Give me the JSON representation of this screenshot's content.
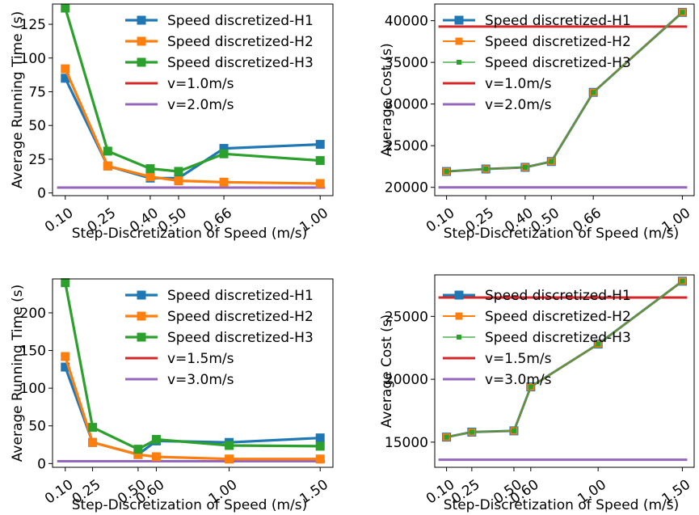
{
  "chart_data": [
    {
      "type": "line",
      "panel": "top-left",
      "xlabel": "Step-Discretization of Speed (m/s)",
      "ylabel": "Average Running Time (s)",
      "x": [
        0.1,
        0.25,
        0.4,
        0.5,
        0.66,
        1.0
      ],
      "x_tick_labels": [
        "0.10",
        "0.25",
        "0.40",
        "0.50",
        "0.66",
        "1.00"
      ],
      "xlim": [
        0.055,
        1.045
      ],
      "ylim": [
        -2,
        140
      ],
      "y_ticks": [
        0,
        25,
        50,
        75,
        100,
        125
      ],
      "legend_position": "top-right",
      "series": [
        {
          "name": "Speed discretized-H1",
          "color": "#1f77b4",
          "marker_size": "large",
          "values": [
            85,
            20,
            11,
            11,
            33,
            36
          ]
        },
        {
          "name": "Speed discretized-H2",
          "color": "#ff7f0e",
          "marker_size": "large",
          "values": [
            92,
            20,
            12,
            9,
            8,
            7
          ]
        },
        {
          "name": "Speed discretized-H3",
          "color": "#2ca02c",
          "marker_size": "large",
          "values": [
            137,
            31,
            18,
            16,
            29,
            24
          ]
        }
      ],
      "reference_lines": [
        {
          "name": "v=1.0m/s",
          "color": "#d62728",
          "value": 4,
          "visible": true
        },
        {
          "name": "v=2.0m/s",
          "color": "#9467bd",
          "value": 4,
          "visible": true
        }
      ]
    },
    {
      "type": "line",
      "panel": "top-right",
      "xlabel": "Step-Discretization of Speed (m/s)",
      "ylabel": "Average Cost (s)",
      "x": [
        0.1,
        0.25,
        0.4,
        0.5,
        0.66,
        1.0
      ],
      "x_tick_labels": [
        "0.10",
        "0.25",
        "0.40",
        "0.50",
        "0.66",
        "1.00"
      ],
      "xlim": [
        0.055,
        1.045
      ],
      "ylim": [
        19000,
        42000
      ],
      "y_ticks": [
        20000,
        25000,
        30000,
        35000,
        40000
      ],
      "legend_position": "top-left",
      "series": [
        {
          "name": "Speed discretized-H1",
          "color": "#1f77b4",
          "marker_size": "large",
          "values": [
            21900,
            22200,
            22400,
            23100,
            31400,
            41000
          ]
        },
        {
          "name": "Speed discretized-H2",
          "color": "#ff7f0e",
          "marker_size": "medium",
          "values": [
            21900,
            22200,
            22400,
            23100,
            31400,
            41000
          ]
        },
        {
          "name": "Speed discretized-H3",
          "color": "#2ca02c",
          "marker_size": "small",
          "values": [
            21900,
            22200,
            22400,
            23100,
            31400,
            41000
          ]
        }
      ],
      "reference_lines": [
        {
          "name": "v=1.0m/s",
          "color": "#d62728",
          "value": 39300,
          "visible": true
        },
        {
          "name": "v=2.0m/s",
          "color": "#9467bd",
          "value": 20000,
          "visible": true
        }
      ]
    },
    {
      "type": "line",
      "panel": "bottom-left",
      "xlabel": "Step-Discretization of Speed (m/s)",
      "ylabel": "Average Running Time (s)",
      "x": [
        0.1,
        0.25,
        0.5,
        0.6,
        1.0,
        1.5
      ],
      "x_tick_labels": [
        "0.10",
        "0.25",
        "0.50",
        "0.60",
        "1.00",
        "1.50"
      ],
      "xlim": [
        0.03,
        1.57
      ],
      "ylim": [
        -5,
        245
      ],
      "y_ticks": [
        0,
        50,
        100,
        150,
        200
      ],
      "legend_position": "top-right",
      "series": [
        {
          "name": "Speed discretized-H1",
          "color": "#1f77b4",
          "marker_size": "large",
          "values": [
            128,
            28,
            12,
            30,
            28,
            34
          ]
        },
        {
          "name": "Speed discretized-H2",
          "color": "#ff7f0e",
          "marker_size": "large",
          "values": [
            142,
            28,
            12,
            9,
            6,
            6
          ]
        },
        {
          "name": "Speed discretized-H3",
          "color": "#2ca02c",
          "marker_size": "large",
          "values": [
            240,
            48,
            19,
            32,
            24,
            23
          ]
        }
      ],
      "reference_lines": [
        {
          "name": "v=1.5m/s",
          "color": "#d62728",
          "value": 3,
          "visible": false
        },
        {
          "name": "v=3.0m/s",
          "color": "#9467bd",
          "value": 3,
          "visible": true
        }
      ]
    },
    {
      "type": "line",
      "panel": "bottom-right",
      "xlabel": "Step-Discretization of Speed (m/s)",
      "ylabel": "Average Cost (s)",
      "x": [
        0.1,
        0.25,
        0.5,
        0.6,
        1.0,
        1.5
      ],
      "x_tick_labels": [
        "0.10",
        "0.25",
        "0.50",
        "0.60",
        "1.00",
        "1.50"
      ],
      "xlim": [
        0.03,
        1.57
      ],
      "ylim": [
        13000,
        28300
      ],
      "y_ticks": [
        15000,
        20000,
        25000
      ],
      "legend_position": "top-left",
      "series": [
        {
          "name": "Speed discretized-H1",
          "color": "#1f77b4",
          "marker_size": "large",
          "values": [
            15400,
            15800,
            15900,
            19400,
            22800,
            27800
          ]
        },
        {
          "name": "Speed discretized-H2",
          "color": "#ff7f0e",
          "marker_size": "medium",
          "values": [
            15400,
            15800,
            15900,
            19400,
            22800,
            27800
          ]
        },
        {
          "name": "Speed discretized-H3",
          "color": "#2ca02c",
          "marker_size": "small",
          "values": [
            15400,
            15800,
            15900,
            19400,
            22800,
            27800
          ]
        }
      ],
      "reference_lines": [
        {
          "name": "v=1.5m/s",
          "color": "#d62728",
          "value": 26500,
          "visible": true
        },
        {
          "name": "v=3.0m/s",
          "color": "#9467bd",
          "value": 13600,
          "visible": true
        }
      ]
    }
  ]
}
